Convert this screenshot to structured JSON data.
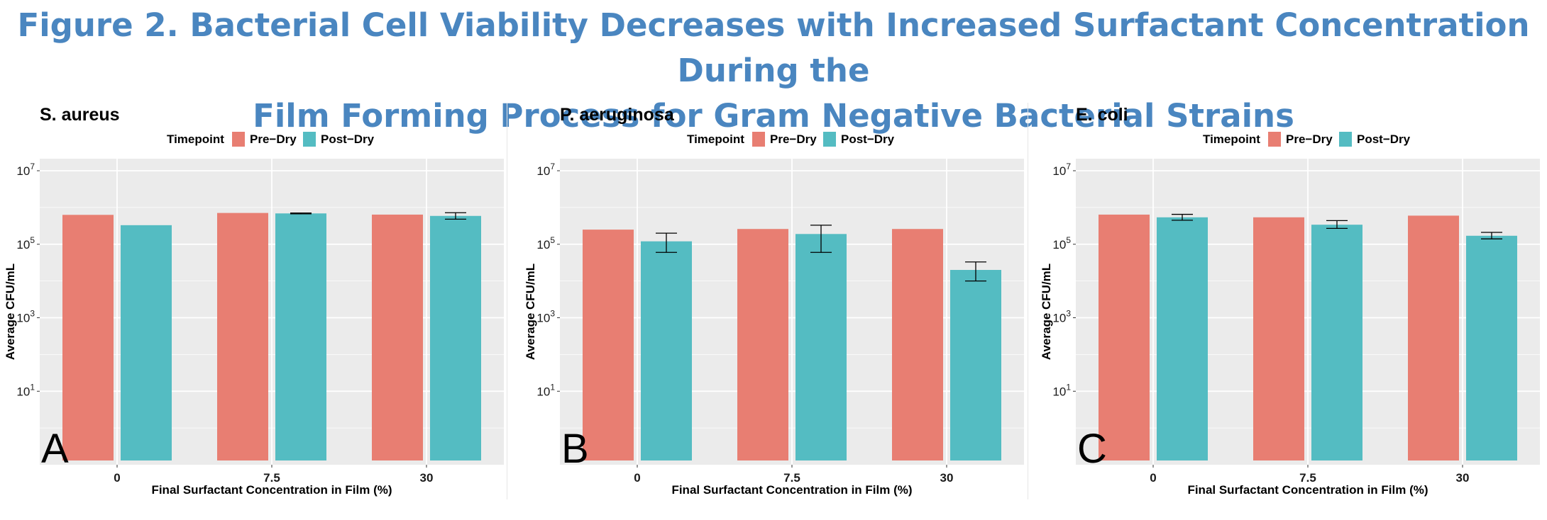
{
  "figure": {
    "title_line1": "Figure 2. Bacterial Cell Viability Decreases with Increased Surfactant Concentration During the",
    "title_line2": "Film Forming Process for Gram Negative Bacterial Strains"
  },
  "colors": {
    "title": "#4a86c0",
    "pre_dry": "#e87e72",
    "post_dry": "#54bcc2",
    "panel_bg": "#ebebeb",
    "grid": "#ffffff"
  },
  "chart_data": [
    {
      "type": "bar",
      "title": "S. aureus",
      "panel_letter": "A",
      "xlabel": "Final Surfactant Concentration in Film (%)",
      "ylabel": "Average CFU/mL",
      "categories": [
        "0",
        "7.5",
        "30"
      ],
      "y_scale": "log10",
      "ylim": [
        0.1,
        10000000
      ],
      "y_ticks": [
        {
          "value": 10,
          "base": "10",
          "exp": "1"
        },
        {
          "value": 1000,
          "base": "10",
          "exp": "3"
        },
        {
          "value": 100000,
          "base": "10",
          "exp": "5"
        },
        {
          "value": 10000000,
          "base": "10",
          "exp": "7"
        }
      ],
      "legend": {
        "title": "Timepoint",
        "position": "top"
      },
      "series": [
        {
          "name": "Pre−Dry",
          "values": [
            630000,
            710000,
            640000
          ],
          "error": [
            null,
            null,
            null
          ]
        },
        {
          "name": "Post−Dry",
          "values": [
            330000,
            690000,
            590000
          ],
          "error_low": [
            null,
            670000,
            480000
          ],
          "error_high": [
            null,
            710000,
            720000
          ]
        }
      ]
    },
    {
      "type": "bar",
      "title": "P. aeruginosa",
      "panel_letter": "B",
      "xlabel": "Final Surfactant Concentration in Film (%)",
      "ylabel": "Average CFU/mL",
      "categories": [
        "0",
        "7.5",
        "30"
      ],
      "y_scale": "log10",
      "ylim": [
        0.1,
        10000000
      ],
      "y_ticks": [
        {
          "value": 10,
          "base": "10",
          "exp": "1"
        },
        {
          "value": 1000,
          "base": "10",
          "exp": "3"
        },
        {
          "value": 100000,
          "base": "10",
          "exp": "5"
        },
        {
          "value": 10000000,
          "base": "10",
          "exp": "7"
        }
      ],
      "legend": {
        "title": "Timepoint",
        "position": "top"
      },
      "series": [
        {
          "name": "Pre−Dry",
          "values": [
            250000,
            260000,
            260000
          ],
          "error": [
            null,
            null,
            null
          ]
        },
        {
          "name": "Post−Dry",
          "values": [
            120000,
            190000,
            20000
          ],
          "error_low": [
            60000,
            60000,
            10000
          ],
          "error_high": [
            200000,
            330000,
            33000
          ]
        }
      ]
    },
    {
      "type": "bar",
      "title": "E. coli",
      "panel_letter": "C",
      "xlabel": "Final Surfactant Concentration in Film (%)",
      "ylabel": "Average CFU/mL",
      "categories": [
        "0",
        "7.5",
        "30"
      ],
      "y_scale": "log10",
      "ylim": [
        0.1,
        10000000
      ],
      "y_ticks": [
        {
          "value": 10,
          "base": "10",
          "exp": "1"
        },
        {
          "value": 1000,
          "base": "10",
          "exp": "3"
        },
        {
          "value": 100000,
          "base": "10",
          "exp": "5"
        },
        {
          "value": 10000000,
          "base": "10",
          "exp": "7"
        }
      ],
      "legend": {
        "title": "Timepoint",
        "position": "top"
      },
      "series": [
        {
          "name": "Pre−Dry",
          "values": [
            640000,
            540000,
            600000
          ],
          "error": [
            null,
            null,
            null
          ]
        },
        {
          "name": "Post−Dry",
          "values": [
            540000,
            340000,
            170000
          ],
          "error_low": [
            450000,
            270000,
            140000
          ],
          "error_high": [
            650000,
            440000,
            210000
          ]
        }
      ]
    }
  ]
}
